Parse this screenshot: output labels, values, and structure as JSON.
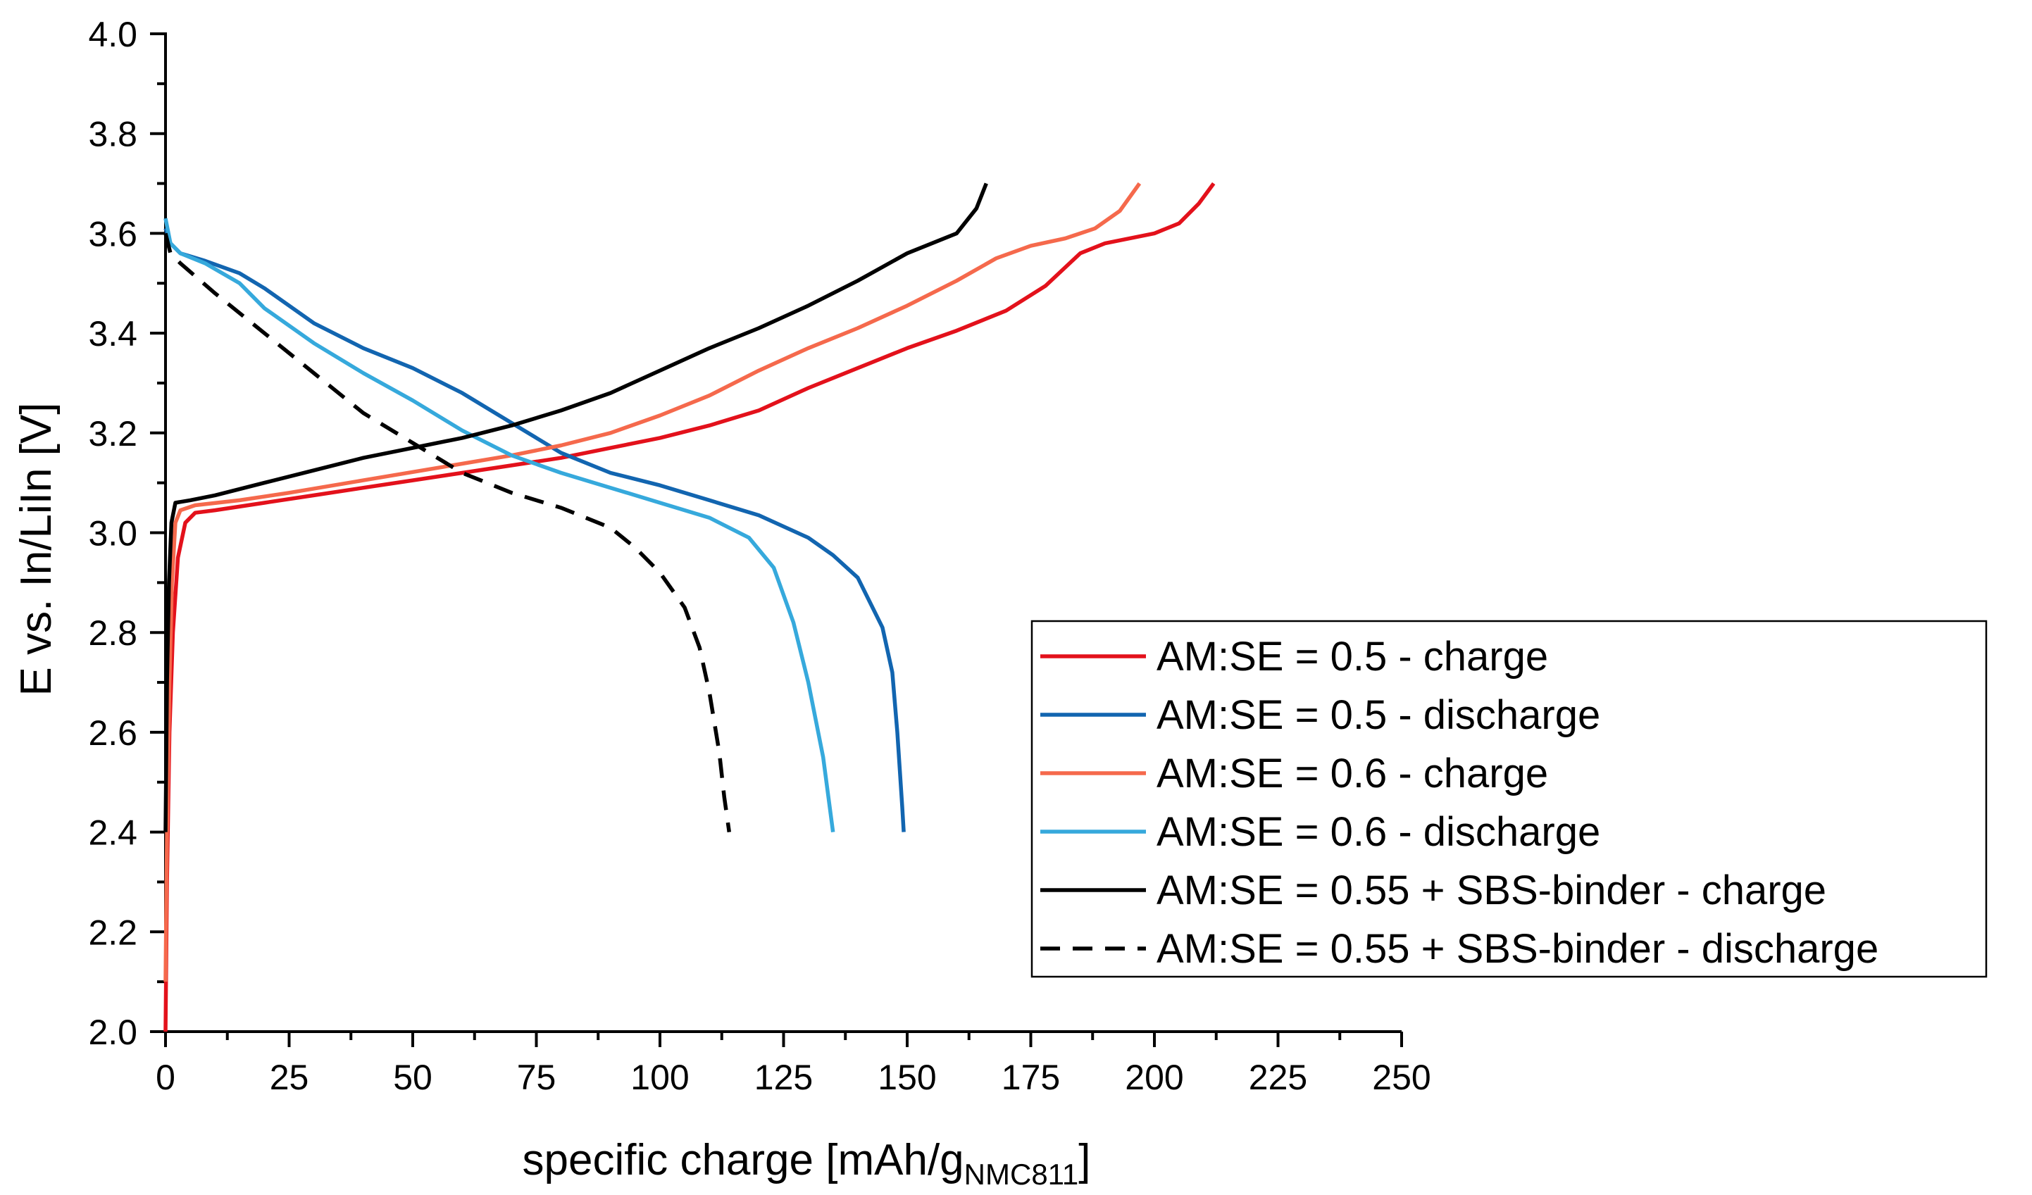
{
  "chart_data": {
    "type": "line",
    "xlabel": "specific charge [mAh/g",
    "xlabel_sub": "NMC811",
    "xlabel_suffix": "]",
    "ylabel": "E vs. In/LiIn [V]",
    "xlim": [
      0,
      250
    ],
    "ylim": [
      2.0,
      4.0
    ],
    "x_ticks": [
      0,
      25,
      50,
      75,
      100,
      125,
      150,
      175,
      200,
      225,
      250
    ],
    "x_tick_labels": [
      "0",
      "25",
      "50",
      "75",
      "100",
      "125",
      "150",
      "175",
      "200",
      "225",
      "250"
    ],
    "y_ticks": [
      2.0,
      2.2,
      2.4,
      2.6,
      2.8,
      3.0,
      3.2,
      3.4,
      3.6,
      3.8,
      4.0
    ],
    "y_tick_labels": [
      "2.0",
      "2.2",
      "2.4",
      "2.6",
      "2.8",
      "3.0",
      "3.2",
      "3.4",
      "3.6",
      "3.8",
      "4.0"
    ],
    "grid": false,
    "legend_position": "bottom-right",
    "series": [
      {
        "name": "AM:SE = 0.5 - charge",
        "color": "#e3111b",
        "dash": "solid",
        "points": [
          [
            0,
            2.0
          ],
          [
            0.3,
            2.3
          ],
          [
            0.8,
            2.6
          ],
          [
            1.5,
            2.8
          ],
          [
            2.5,
            2.95
          ],
          [
            4,
            3.02
          ],
          [
            6,
            3.04
          ],
          [
            10,
            3.045
          ],
          [
            20,
            3.06
          ],
          [
            30,
            3.075
          ],
          [
            40,
            3.09
          ],
          [
            50,
            3.105
          ],
          [
            60,
            3.12
          ],
          [
            70,
            3.135
          ],
          [
            80,
            3.15
          ],
          [
            90,
            3.17
          ],
          [
            100,
            3.19
          ],
          [
            110,
            3.215
          ],
          [
            120,
            3.245
          ],
          [
            130,
            3.29
          ],
          [
            140,
            3.33
          ],
          [
            150,
            3.37
          ],
          [
            160,
            3.405
          ],
          [
            170,
            3.445
          ],
          [
            178,
            3.495
          ],
          [
            185,
            3.56
          ],
          [
            190,
            3.58
          ],
          [
            200,
            3.6
          ],
          [
            205,
            3.62
          ],
          [
            209,
            3.66
          ],
          [
            212,
            3.7
          ]
        ]
      },
      {
        "name": "AM:SE = 0.5 - discharge",
        "color": "#1265b0",
        "dash": "solid",
        "points": [
          [
            0,
            3.61
          ],
          [
            1,
            3.58
          ],
          [
            3,
            3.56
          ],
          [
            8,
            3.545
          ],
          [
            15,
            3.52
          ],
          [
            20,
            3.49
          ],
          [
            30,
            3.42
          ],
          [
            40,
            3.37
          ],
          [
            50,
            3.33
          ],
          [
            60,
            3.28
          ],
          [
            70,
            3.22
          ],
          [
            80,
            3.16
          ],
          [
            90,
            3.12
          ],
          [
            100,
            3.095
          ],
          [
            110,
            3.065
          ],
          [
            120,
            3.035
          ],
          [
            130,
            2.99
          ],
          [
            135,
            2.955
          ],
          [
            140,
            2.91
          ],
          [
            145,
            2.81
          ],
          [
            147,
            2.72
          ],
          [
            148,
            2.6
          ],
          [
            149,
            2.45
          ],
          [
            149.3,
            2.4
          ]
        ]
      },
      {
        "name": "AM:SE = 0.6 - charge",
        "color": "#f5694c",
        "dash": "solid",
        "points": [
          [
            0,
            2.1
          ],
          [
            0.3,
            2.4
          ],
          [
            0.8,
            2.7
          ],
          [
            1.3,
            2.9
          ],
          [
            2,
            3.02
          ],
          [
            3,
            3.045
          ],
          [
            6,
            3.055
          ],
          [
            15,
            3.065
          ],
          [
            25,
            3.08
          ],
          [
            40,
            3.105
          ],
          [
            55,
            3.13
          ],
          [
            70,
            3.155
          ],
          [
            80,
            3.175
          ],
          [
            90,
            3.2
          ],
          [
            100,
            3.235
          ],
          [
            110,
            3.275
          ],
          [
            120,
            3.325
          ],
          [
            130,
            3.37
          ],
          [
            140,
            3.41
          ],
          [
            150,
            3.455
          ],
          [
            160,
            3.505
          ],
          [
            168,
            3.55
          ],
          [
            175,
            3.575
          ],
          [
            182,
            3.59
          ],
          [
            188,
            3.61
          ],
          [
            193,
            3.645
          ],
          [
            197,
            3.7
          ]
        ]
      },
      {
        "name": "AM:SE = 0.6 - discharge",
        "color": "#36a9dc",
        "dash": "solid",
        "points": [
          [
            0,
            3.63
          ],
          [
            1,
            3.58
          ],
          [
            3,
            3.56
          ],
          [
            8,
            3.54
          ],
          [
            15,
            3.5
          ],
          [
            20,
            3.45
          ],
          [
            30,
            3.38
          ],
          [
            40,
            3.32
          ],
          [
            50,
            3.265
          ],
          [
            60,
            3.205
          ],
          [
            70,
            3.155
          ],
          [
            80,
            3.12
          ],
          [
            90,
            3.09
          ],
          [
            100,
            3.06
          ],
          [
            110,
            3.03
          ],
          [
            118,
            2.99
          ],
          [
            123,
            2.93
          ],
          [
            127,
            2.82
          ],
          [
            130,
            2.7
          ],
          [
            133,
            2.55
          ],
          [
            135,
            2.4
          ]
        ]
      },
      {
        "name": "AM:SE = 0.55 + SBS-binder - charge",
        "color": "#000000",
        "dash": "solid",
        "points": [
          [
            0,
            2.4
          ],
          [
            0.3,
            2.7
          ],
          [
            0.7,
            2.9
          ],
          [
            1.2,
            3.02
          ],
          [
            2,
            3.06
          ],
          [
            5,
            3.065
          ],
          [
            10,
            3.075
          ],
          [
            20,
            3.1
          ],
          [
            30,
            3.125
          ],
          [
            40,
            3.15
          ],
          [
            50,
            3.17
          ],
          [
            60,
            3.19
          ],
          [
            70,
            3.215
          ],
          [
            80,
            3.245
          ],
          [
            90,
            3.28
          ],
          [
            100,
            3.325
          ],
          [
            110,
            3.37
          ],
          [
            120,
            3.41
          ],
          [
            130,
            3.455
          ],
          [
            140,
            3.505
          ],
          [
            150,
            3.56
          ],
          [
            155,
            3.58
          ],
          [
            160,
            3.6
          ],
          [
            164,
            3.65
          ],
          [
            166,
            3.7
          ]
        ]
      },
      {
        "name": "AM:SE = 0.55 + SBS-binder - discharge",
        "color": "#000000",
        "dash": "dashed",
        "points": [
          [
            0,
            3.6
          ],
          [
            1,
            3.56
          ],
          [
            3,
            3.54
          ],
          [
            10,
            3.48
          ],
          [
            20,
            3.4
          ],
          [
            30,
            3.32
          ],
          [
            40,
            3.24
          ],
          [
            50,
            3.18
          ],
          [
            60,
            3.12
          ],
          [
            70,
            3.08
          ],
          [
            80,
            3.05
          ],
          [
            90,
            3.01
          ],
          [
            95,
            2.97
          ],
          [
            100,
            2.92
          ],
          [
            105,
            2.85
          ],
          [
            108,
            2.77
          ],
          [
            110,
            2.68
          ],
          [
            112,
            2.56
          ],
          [
            113,
            2.47
          ],
          [
            114,
            2.4
          ]
        ]
      }
    ]
  }
}
